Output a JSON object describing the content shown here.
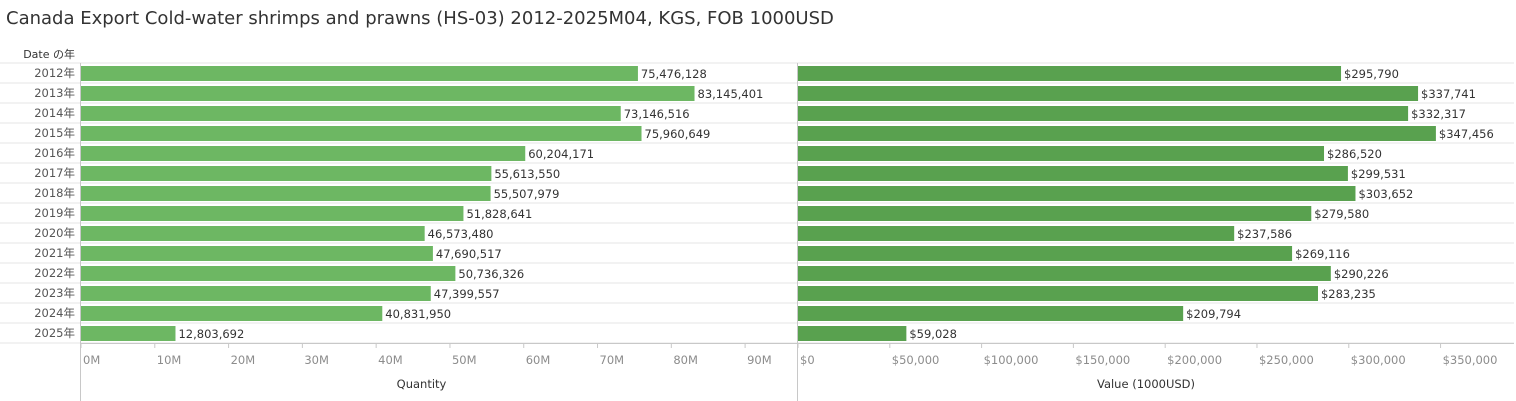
{
  "title": "Canada Export Cold-water shrimps and prawns (HS-03) 2012-2025M04, KGS, FOB 1000USD",
  "row_header": "Date の年",
  "colors": {
    "quantity_bar": "#6DB763",
    "value_bar": "#59A14F",
    "axis_text": "#8c8c8c",
    "grid": "#dcdcdc"
  },
  "chart_data": [
    {
      "type": "bar",
      "orientation": "horizontal",
      "categories": [
        "2012年",
        "2013年",
        "2014年",
        "2015年",
        "2016年",
        "2017年",
        "2018年",
        "2019年",
        "2020年",
        "2021年",
        "2022年",
        "2023年",
        "2024年",
        "2025年"
      ],
      "values": [
        75476128,
        83145401,
        73146516,
        75960649,
        60204171,
        55613550,
        55507979,
        51828641,
        46573480,
        47690517,
        50736326,
        47399557,
        40831950,
        12803692
      ],
      "value_labels": [
        "75,476,128",
        "83,145,401",
        "73,146,516",
        "75,960,649",
        "60,204,171",
        "55,613,550",
        "55,507,979",
        "51,828,641",
        "46,573,480",
        "47,690,517",
        "50,736,326",
        "47,399,557",
        "40,831,950",
        "12,803,692"
      ],
      "xlabel": "Quantity",
      "xlim": [
        0,
        95000000
      ],
      "xticks": [
        0,
        10000000,
        20000000,
        30000000,
        40000000,
        50000000,
        60000000,
        70000000,
        80000000,
        90000000
      ],
      "xtick_labels": [
        "0M",
        "10M",
        "20M",
        "30M",
        "40M",
        "50M",
        "60M",
        "70M",
        "80M",
        "90M"
      ]
    },
    {
      "type": "bar",
      "orientation": "horizontal",
      "categories": [
        "2012年",
        "2013年",
        "2014年",
        "2015年",
        "2016年",
        "2017年",
        "2018年",
        "2019年",
        "2020年",
        "2021年",
        "2022年",
        "2023年",
        "2024年",
        "2025年"
      ],
      "values": [
        295790,
        337741,
        332317,
        347456,
        286520,
        299531,
        303652,
        279580,
        237586,
        269116,
        290226,
        283235,
        209794,
        59028
      ],
      "value_labels": [
        "$295,790",
        "$337,741",
        "$332,317",
        "$347,456",
        "$286,520",
        "$299,531",
        "$303,652",
        "$279,580",
        "$237,586",
        "$269,116",
        "$290,226",
        "$283,235",
        "$209,794",
        "$59,028"
      ],
      "xlabel": "Value (1000USD)",
      "xlim": [
        0,
        390000
      ],
      "xticks": [
        0,
        50000,
        100000,
        150000,
        200000,
        250000,
        300000,
        350000
      ],
      "xtick_labels": [
        "$0",
        "$50,000",
        "$100,000",
        "$150,000",
        "$200,000",
        "$250,000",
        "$300,000",
        "$350,000"
      ]
    }
  ]
}
